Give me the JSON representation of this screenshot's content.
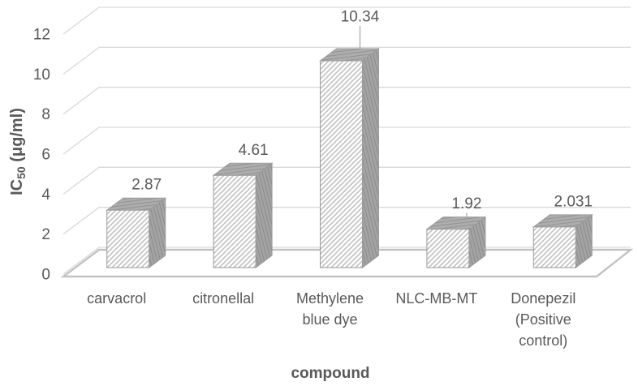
{
  "chart_data": {
    "type": "bar",
    "style": "3d-hatched-excel",
    "title": "",
    "xlabel": "compound",
    "ylabel": "IC50 (μg/ml)",
    "ylabel_parts": {
      "base": "IC",
      "subscript": "50",
      "rest": " (μg/ml)"
    },
    "categories": [
      "carvacrol",
      "citronellal",
      "Methylene blue dye",
      "NLC-MB-MT",
      "Donepezil (Positive control)"
    ],
    "categories_lines": [
      [
        "carvacrol"
      ],
      [
        "citronellal"
      ],
      [
        "Methylene",
        "blue dye"
      ],
      [
        "NLC-MB-MT"
      ],
      [
        "Donepezil",
        "(Positive",
        "control)"
      ]
    ],
    "values": [
      2.87,
      4.61,
      10.34,
      1.92,
      2.031
    ],
    "data_labels": [
      "2.87",
      "4.61",
      "10.34",
      "1.92",
      "2.031"
    ],
    "leader_lines": [
      false,
      false,
      true,
      true,
      false
    ],
    "label_raise": [
      0,
      0,
      -23,
      0,
      0
    ],
    "ylim": [
      0,
      12
    ],
    "ytick_step": 2,
    "yticks": [
      "0",
      "2",
      "4",
      "6",
      "8",
      "10",
      "12"
    ],
    "grid": true,
    "legend": false
  },
  "colors": {
    "background": "#ffffff",
    "text": "#595959",
    "gridline": "#d9d9d9",
    "floor_edge": "#c2c2c2",
    "bar_front_bg": "#ffffff",
    "bar_front_hatch": "#c5c5c5",
    "bar_top_bg": "#adadad",
    "bar_top_line": "#929292",
    "bar_side_bg": "#a4a4a4",
    "bar_side_line": "#8a8a8a",
    "bar_outline": "#9b9b9b",
    "leader_line": "#a6a6a6"
  }
}
